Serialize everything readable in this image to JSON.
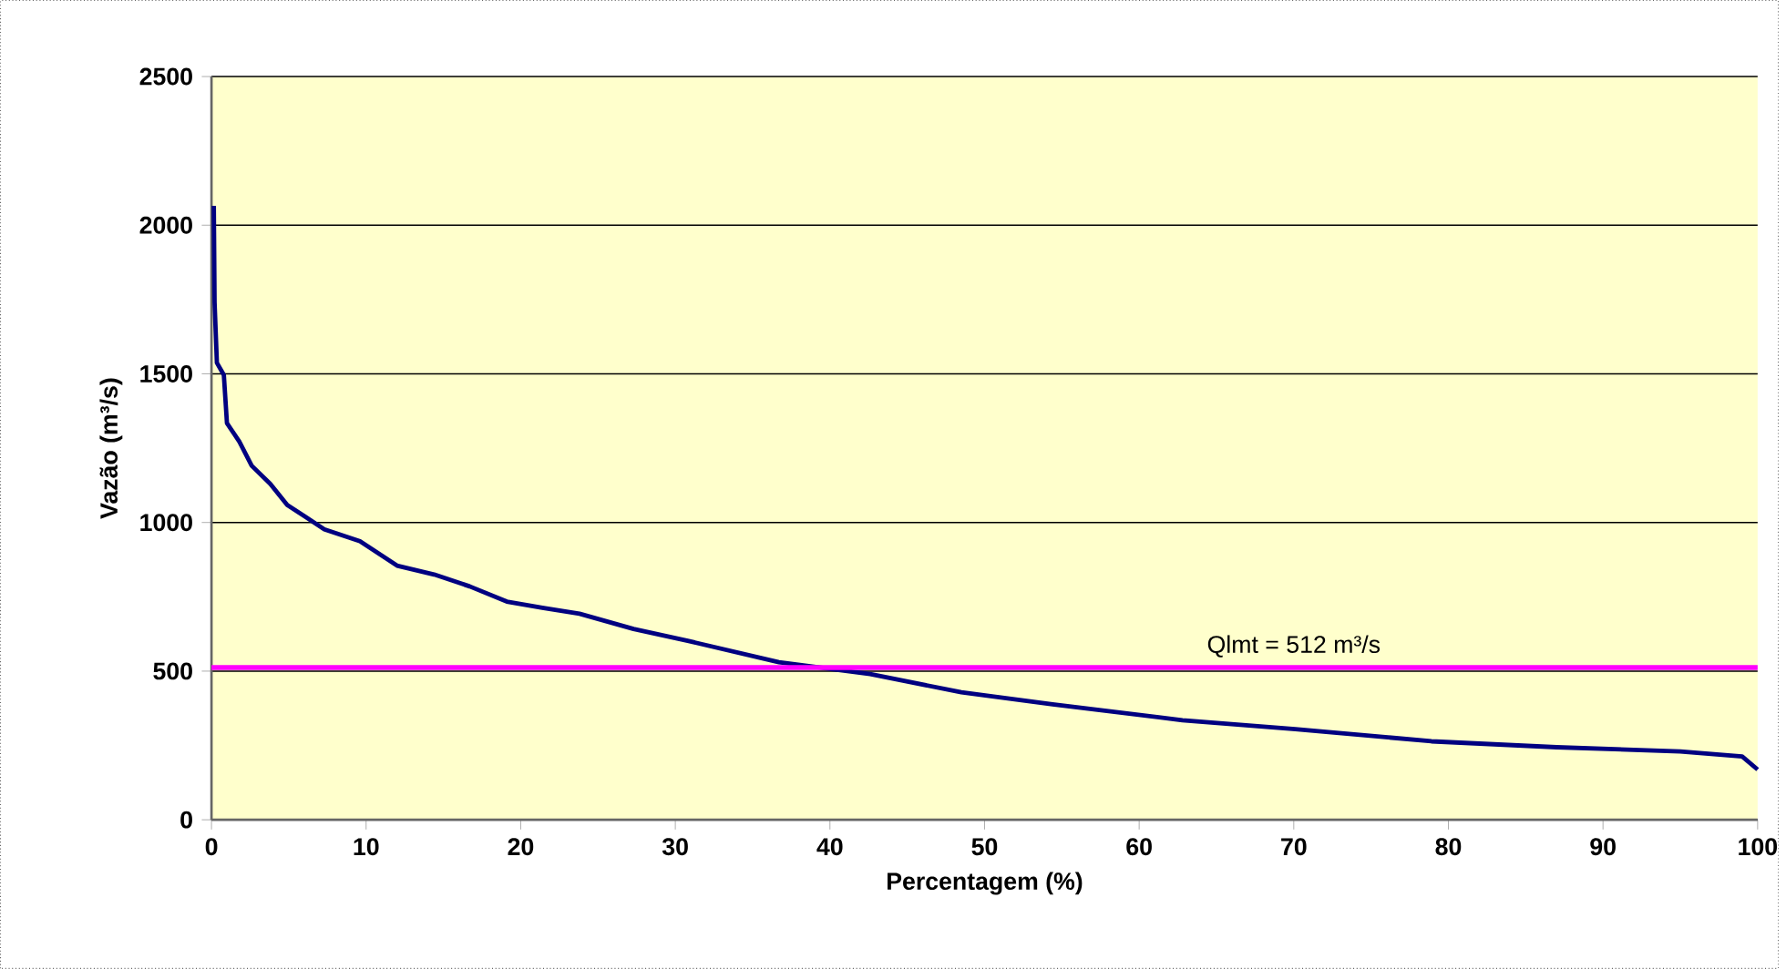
{
  "chart_data": {
    "type": "line",
    "xlabel": "Percentagem (%)",
    "ylabel": "Vazão (m³/s)",
    "x": [
      0.15,
      0.2,
      0.35,
      0.8,
      1.0,
      1.8,
      2.6,
      3.8,
      4.9,
      6.1,
      7.3,
      9.6,
      12,
      14.4,
      16.7,
      19.1,
      21.4,
      23.8,
      27.3,
      30.8,
      36.7,
      42.6,
      48.5,
      54.4,
      62.8,
      70.1,
      78.9,
      87,
      95,
      99,
      100
    ],
    "series": [
      {
        "color": "#000080",
        "values": [
          2065,
          1740,
          1537,
          1496,
          1334,
          1272,
          1191,
          1130,
          1059,
          1018,
          977,
          937,
          855,
          825,
          785,
          734,
          713,
          693,
          642,
          602,
          530,
          490,
          429,
          388,
          335,
          305,
          264,
          244,
          230,
          213,
          169
        ]
      }
    ],
    "xlim": [
      0,
      100
    ],
    "ylim": [
      0,
      2500
    ],
    "xticks": [
      0,
      10,
      20,
      30,
      40,
      50,
      60,
      70,
      80,
      90,
      100
    ],
    "yticks": [
      0,
      500,
      1000,
      1500,
      2000,
      2500
    ],
    "grid": "y",
    "marker": "none",
    "line_style": "solid",
    "ref_lines": [
      {
        "axis": "y",
        "value": 512,
        "label": "Qlmt = 512 m³/s",
        "color": "#ff00ff"
      }
    ]
  }
}
